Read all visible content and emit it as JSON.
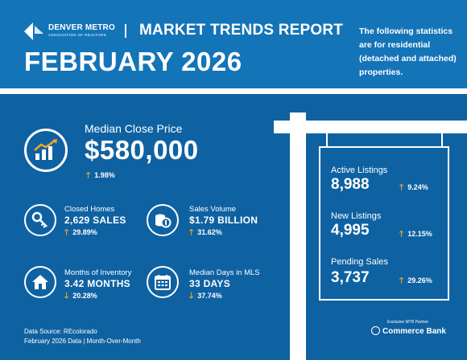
{
  "header": {
    "logo_name": "DENVER METRO",
    "logo_sub": "ASSOCIATION OF REALTORS",
    "report_title": "MARKET TRENDS REPORT",
    "month_title": "FEBRUARY 2026",
    "note": "The following statistics are for residential (detached and attached) properties."
  },
  "median_close_price": {
    "label": "Median Close Price",
    "value": "$580,000",
    "change": "1.98%",
    "direction": "up",
    "icon": "chart-growth-icon"
  },
  "closed_homes": {
    "label": "Closed Homes",
    "value": "2,629 SALES",
    "change": "29.89%",
    "direction": "up",
    "icon": "key-icon"
  },
  "sales_volume": {
    "label": "Sales Volume",
    "value": "$1.79 BILLION",
    "change": "31.62%",
    "direction": "up",
    "icon": "coins-icon"
  },
  "months_inventory": {
    "label": "Months of Inventory",
    "value": "3.42 MONTHS",
    "change": "20.28%",
    "direction": "down",
    "icon": "house-icon"
  },
  "median_days": {
    "label": "Median Days in MLS",
    "value": "33 DAYS",
    "change": "37.74%",
    "direction": "down",
    "icon": "calendar-icon"
  },
  "sign": {
    "active": {
      "label": "Active Listings",
      "value": "8,988",
      "change": "9.24%",
      "direction": "up"
    },
    "new": {
      "label": "New Listings",
      "value": "4,995",
      "change": "12.15%",
      "direction": "up"
    },
    "pending": {
      "label": "Pending Sales",
      "value": "3,737",
      "change": "29.26%",
      "direction": "up"
    }
  },
  "footer": {
    "source": "Data Source: REcolorado",
    "period": "February 2026 Data | Month-Over-Month",
    "partner_label": "Exclusive MTR Partner",
    "partner_name": "Commerce Bank"
  },
  "arrows": {
    "up": "🡑",
    "down": "🡓"
  },
  "colors": {
    "header_bg": "#1474b8",
    "main_bg": "#0f62a2",
    "accent": "#f5a623"
  }
}
